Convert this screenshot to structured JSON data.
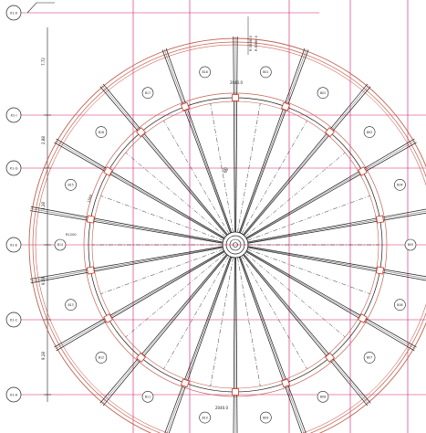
{
  "drawing": {
    "grid_axes": [
      "X1-II",
      "X1-I",
      "X1-G",
      "X1-E",
      "X1-C",
      "X1-A"
    ],
    "row_dimensions": [
      "7.72",
      "2.88",
      "3.28",
      "9.28",
      "9.28"
    ],
    "top_labels": [
      "R:3506.0",
      "R:5880.0"
    ],
    "ring_dim_top": "2040.0",
    "ring_dim_side": "1560",
    "ring_dim_bottom": "2040.0",
    "center_label": "@",
    "radius_label": "R1200",
    "member_tags": [
      "B01",
      "B02",
      "B03",
      "B04",
      "B05",
      "B06",
      "B07",
      "B08",
      "B09",
      "B10",
      "B11",
      "B12",
      "B13",
      "B14",
      "B15",
      "B16",
      "B17",
      "B18"
    ],
    "colors": {
      "line": "#1a1a1a",
      "gridline": "#d21a6a",
      "ring": "#c06050",
      "ring_accent": "#c9382a"
    }
  }
}
